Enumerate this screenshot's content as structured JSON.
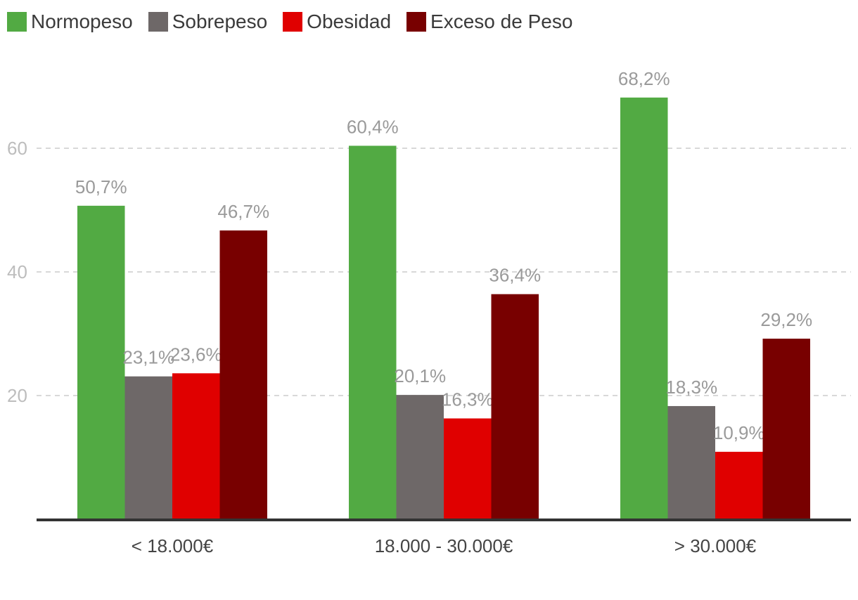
{
  "chart_data": {
    "type": "bar",
    "categories": [
      "< 18.000€",
      "18.000 - 30.000€",
      "> 30.000€"
    ],
    "series": [
      {
        "name": "Normopeso",
        "color": "#52aa43",
        "values": [
          50.7,
          60.4,
          68.2
        ],
        "labels": [
          "50,7%",
          "60,4%",
          "68,2%"
        ]
      },
      {
        "name": "Sobrepeso",
        "color": "#6e6868",
        "values": [
          23.1,
          20.1,
          18.3
        ],
        "labels": [
          "23,1%",
          "20,1%",
          "18,3%"
        ]
      },
      {
        "name": "Obesidad",
        "color": "#e00000",
        "values": [
          23.6,
          16.3,
          10.9
        ],
        "labels": [
          "23,6%",
          "16,3%",
          "10,9%"
        ]
      },
      {
        "name": "Exceso de Peso",
        "color": "#780000",
        "values": [
          46.7,
          36.4,
          29.2
        ],
        "labels": [
          "46,7%",
          "36,4%",
          "29,2%"
        ]
      }
    ],
    "yticks": [
      20,
      40,
      60
    ],
    "ylim": [
      0,
      75
    ],
    "grid": true,
    "legend_position": "top-left",
    "title": "",
    "xlabel": "",
    "ylabel": ""
  }
}
